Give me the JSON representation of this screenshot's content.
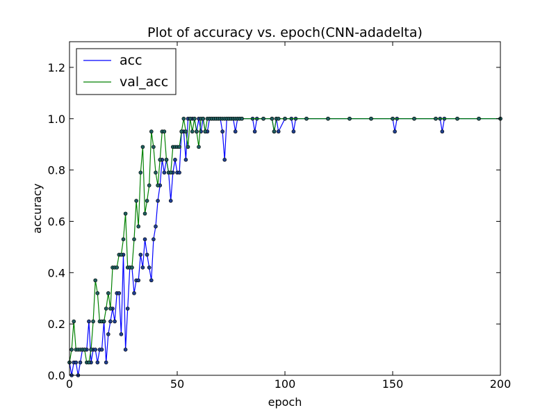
{
  "chart_data": {
    "type": "line",
    "title": "Plot of accuracy vs. epoch(CNN-adadelta)",
    "xlabel": "epoch",
    "ylabel": "accuracy",
    "xlim": [
      0,
      200
    ],
    "ylim": [
      0.0,
      1.3
    ],
    "xticks": [
      0,
      50,
      100,
      150,
      200
    ],
    "xtick_labels": [
      "0",
      "50",
      "100",
      "150",
      "200"
    ],
    "yticks": [
      0.0,
      0.2,
      0.4,
      0.6,
      0.8,
      1.0,
      1.2
    ],
    "ytick_labels": [
      "0.0",
      "0.2",
      "0.4",
      "0.6",
      "0.8",
      "1.0",
      "1.2"
    ],
    "grid": false,
    "legend_position": "top-left",
    "markers": true,
    "series": [
      {
        "name": "acc",
        "color": "#0000ff",
        "x": [
          0,
          1,
          2,
          3,
          4,
          5,
          6,
          7,
          8,
          9,
          10,
          11,
          12,
          13,
          14,
          15,
          16,
          17,
          18,
          19,
          20,
          21,
          22,
          23,
          24,
          25,
          26,
          27,
          28,
          29,
          30,
          31,
          32,
          33,
          34,
          35,
          36,
          37,
          38,
          39,
          40,
          41,
          42,
          43,
          44,
          45,
          46,
          47,
          48,
          49,
          50,
          51,
          52,
          53,
          54,
          55,
          56,
          57,
          58,
          59,
          60,
          61,
          62,
          63,
          64,
          65,
          66,
          67,
          68,
          69,
          70,
          71,
          72,
          73,
          74,
          75,
          76,
          77,
          78,
          79,
          80,
          85,
          86,
          87,
          90,
          94,
          95,
          96,
          97,
          100,
          103,
          104,
          105,
          110,
          120,
          130,
          140,
          150,
          151,
          152,
          160,
          170,
          172,
          173,
          174,
          180,
          190,
          200
        ],
        "y": [
          0.05,
          0.0,
          0.05,
          0.05,
          0.0,
          0.05,
          0.1,
          0.1,
          0.1,
          0.21,
          0.05,
          0.1,
          0.1,
          0.05,
          0.1,
          0.1,
          0.21,
          0.05,
          0.16,
          0.21,
          0.26,
          0.21,
          0.32,
          0.32,
          0.16,
          0.47,
          0.1,
          0.26,
          0.42,
          0.42,
          0.32,
          0.37,
          0.37,
          0.47,
          0.42,
          0.53,
          0.47,
          0.42,
          0.37,
          0.53,
          0.58,
          0.68,
          0.74,
          0.84,
          0.79,
          0.84,
          0.79,
          0.68,
          0.79,
          0.84,
          0.79,
          0.79,
          0.95,
          0.95,
          0.84,
          1.0,
          1.0,
          1.0,
          1.0,
          0.95,
          1.0,
          0.95,
          1.0,
          0.95,
          0.95,
          1.0,
          1.0,
          1.0,
          1.0,
          1.0,
          1.0,
          0.95,
          0.84,
          1.0,
          1.0,
          1.0,
          1.0,
          0.95,
          1.0,
          1.0,
          1.0,
          1.0,
          0.95,
          1.0,
          1.0,
          1.0,
          0.95,
          1.0,
          0.95,
          1.0,
          1.0,
          0.95,
          1.0,
          1.0,
          1.0,
          1.0,
          1.0,
          1.0,
          0.95,
          1.0,
          1.0,
          1.0,
          1.0,
          0.95,
          1.0,
          1.0,
          1.0,
          1.0
        ]
      },
      {
        "name": "val_acc",
        "color": "#008000",
        "x": [
          0,
          1,
          2,
          3,
          4,
          5,
          6,
          7,
          8,
          9,
          10,
          11,
          12,
          13,
          14,
          15,
          16,
          17,
          18,
          19,
          20,
          21,
          22,
          23,
          24,
          25,
          26,
          27,
          28,
          29,
          30,
          31,
          32,
          33,
          34,
          35,
          36,
          37,
          38,
          39,
          40,
          41,
          42,
          43,
          44,
          45,
          46,
          47,
          48,
          49,
          50,
          51,
          52,
          53,
          54,
          55,
          56,
          57,
          58,
          59,
          60,
          61,
          62,
          63,
          64,
          65,
          66,
          67,
          68,
          69,
          70,
          71,
          72,
          73,
          74,
          75,
          76,
          77,
          78,
          79,
          80,
          90,
          94,
          95,
          96,
          97,
          100,
          110,
          120,
          130,
          140,
          150,
          160,
          170,
          180,
          190,
          200
        ],
        "y": [
          0.05,
          0.1,
          0.21,
          0.1,
          0.1,
          0.1,
          0.1,
          0.1,
          0.05,
          0.05,
          0.1,
          0.21,
          0.37,
          0.32,
          0.21,
          0.21,
          0.21,
          0.26,
          0.32,
          0.26,
          0.42,
          0.42,
          0.42,
          0.47,
          0.47,
          0.53,
          0.63,
          0.42,
          0.42,
          0.42,
          0.53,
          0.68,
          0.58,
          0.79,
          0.89,
          0.63,
          0.68,
          0.74,
          0.95,
          0.89,
          0.79,
          0.74,
          0.84,
          0.95,
          0.95,
          0.84,
          0.79,
          0.79,
          0.89,
          0.89,
          0.89,
          0.89,
          0.95,
          1.0,
          0.95,
          0.89,
          1.0,
          0.95,
          1.0,
          0.95,
          0.89,
          1.0,
          1.0,
          0.95,
          1.0,
          1.0,
          1.0,
          1.0,
          1.0,
          1.0,
          1.0,
          1.0,
          1.0,
          1.0,
          1.0,
          1.0,
          1.0,
          1.0,
          1.0,
          1.0,
          1.0,
          1.0,
          1.0,
          0.95,
          1.0,
          1.0,
          1.0,
          1.0,
          1.0,
          1.0,
          1.0,
          1.0,
          1.0,
          1.0,
          1.0,
          1.0,
          1.0
        ]
      }
    ]
  }
}
